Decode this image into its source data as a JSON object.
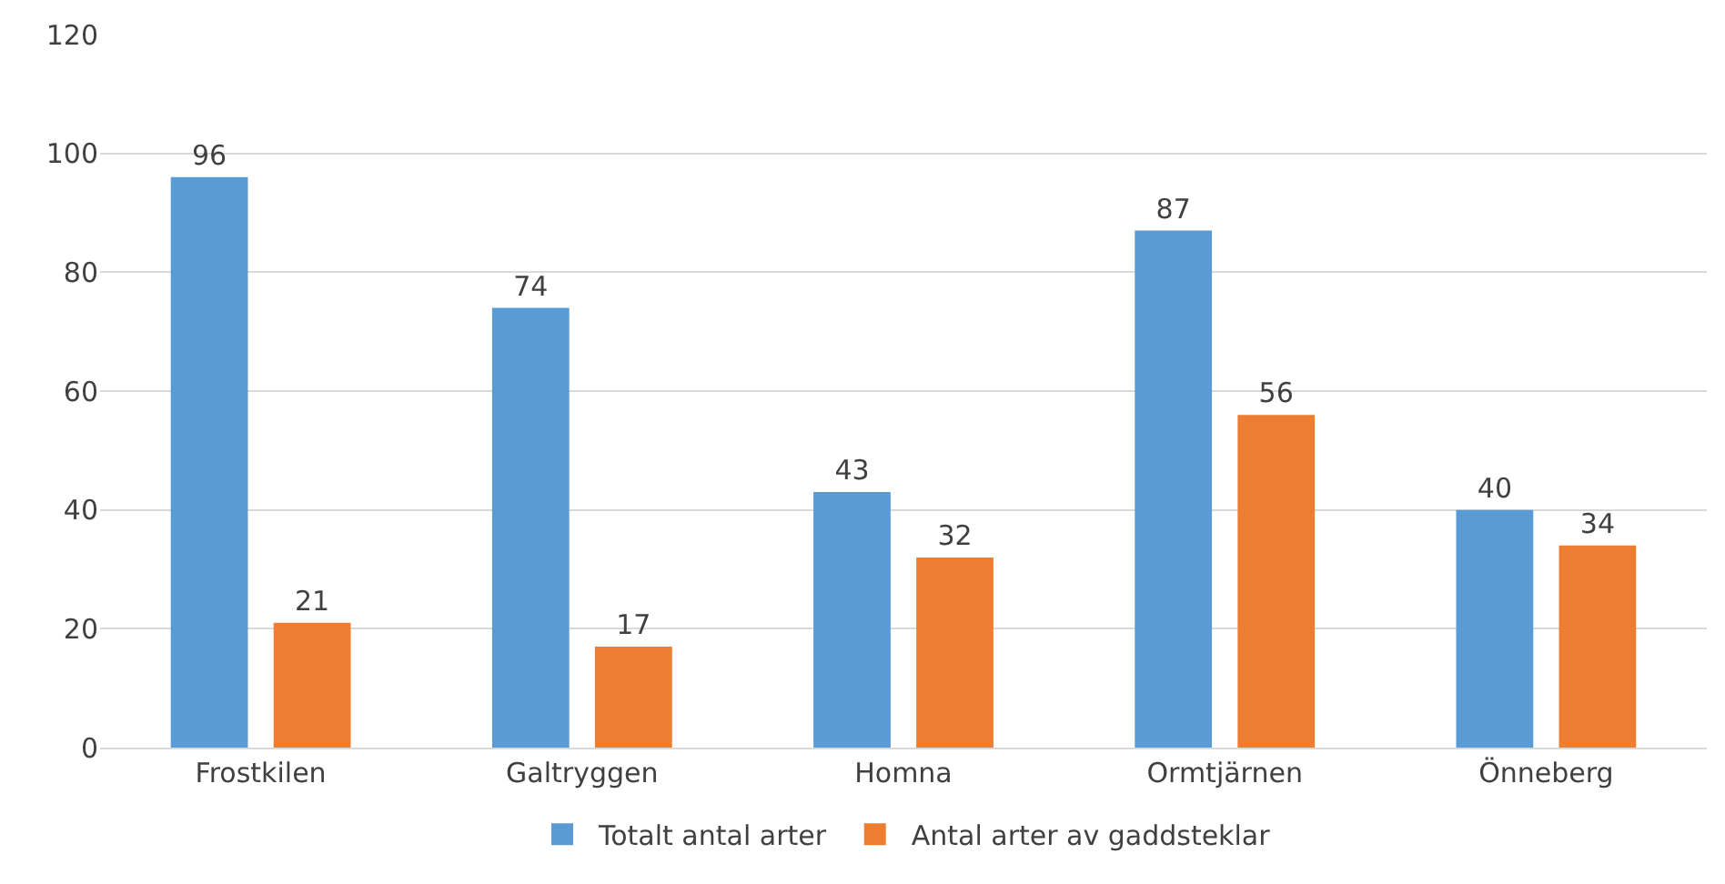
{
  "chart_data": {
    "type": "bar",
    "categories": [
      "Frostkilen",
      "Galtryggen",
      "Homna",
      "Ormtjärnen",
      "Önneberg"
    ],
    "series": [
      {
        "name": "Totalt antal arter",
        "color": "#5b9bd5",
        "values": [
          96,
          74,
          43,
          87,
          40
        ]
      },
      {
        "name": "Antal arter av gaddsteklar",
        "color": "#ed7d31",
        "values": [
          21,
          17,
          32,
          56,
          34
        ]
      }
    ],
    "ylim": [
      0,
      120
    ],
    "yticks": [
      0,
      20,
      40,
      60,
      80,
      100,
      120
    ],
    "grid": "y",
    "legend": "bottom",
    "data_labels": true
  }
}
